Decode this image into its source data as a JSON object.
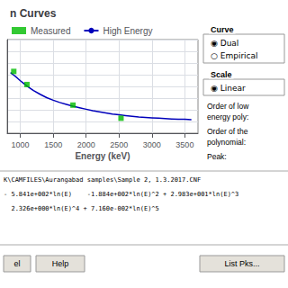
{
  "chart_data": {
    "type": "line",
    "title": "n Curves",
    "xlabel": "Energy (keV)",
    "xlim": [
      800,
      3700
    ],
    "xticks": [
      1000,
      1500,
      2000,
      2500,
      3000,
      3500
    ],
    "ylim": [
      0.0,
      0.025
    ],
    "yticks": [
      0,
      0.003125,
      0.00625,
      0.009375,
      0.0125,
      0.015625,
      0.01875,
      0.021875,
      0.025
    ],
    "tick_labels": "x",
    "grid": true,
    "legend": "upper left",
    "series": [
      {
        "name": "Measured",
        "type": "scatter",
        "color": "#00bb00",
        "marker": "square",
        "x": [
          900,
          1100,
          1800,
          2530
        ],
        "values": [
          0.0165,
          0.013,
          0.0075,
          0.004
        ]
      },
      {
        "name": "High Energy",
        "type": "line",
        "color": "#0000bb",
        "line_style": "solid",
        "x": [
          850,
          900,
          950,
          1000,
          1050,
          1100,
          1200,
          1300,
          1400,
          1500,
          1600,
          1700,
          1800,
          1900,
          2000,
          2100,
          2200,
          2300,
          2400,
          2500,
          2600,
          2700,
          2800,
          2900,
          3000,
          3100,
          3200,
          3300,
          3400,
          3500,
          3600
        ],
        "values": [
          0.0162,
          0.0155,
          0.0148,
          0.014,
          0.0133,
          0.0126,
          0.0114,
          0.0104,
          0.0095,
          0.0088,
          0.0082,
          0.0077,
          0.0072,
          0.0068,
          0.0064,
          0.006,
          0.0057,
          0.0054,
          0.0051,
          0.0049,
          0.0047,
          0.0045,
          0.0043,
          0.0042,
          0.0041,
          0.004,
          0.0039,
          0.0038,
          0.0037,
          0.0037,
          0.0036
        ]
      }
    ],
    "annotations": [
      "Curve",
      "◉ Dual",
      "○ Empirical",
      "Scale",
      "◉ Linear",
      "Order of low",
      "energy poly:",
      "Order of the",
      "polynomial:",
      "Peak:",
      "K\\CAMFILES\\Aurangabad samples\\Sample 2, 1.3.2017.CNF",
      "- 5.841e+002*ln(E)    -1.884e+002*ln(E)^2 + 2.983e+001*ln(E)^3",
      "  2.326e+000*ln(E)^4 + 7.160e-002*ln(E)^5",
      "el",
      "Help",
      "List Pks..."
    ]
  }
}
